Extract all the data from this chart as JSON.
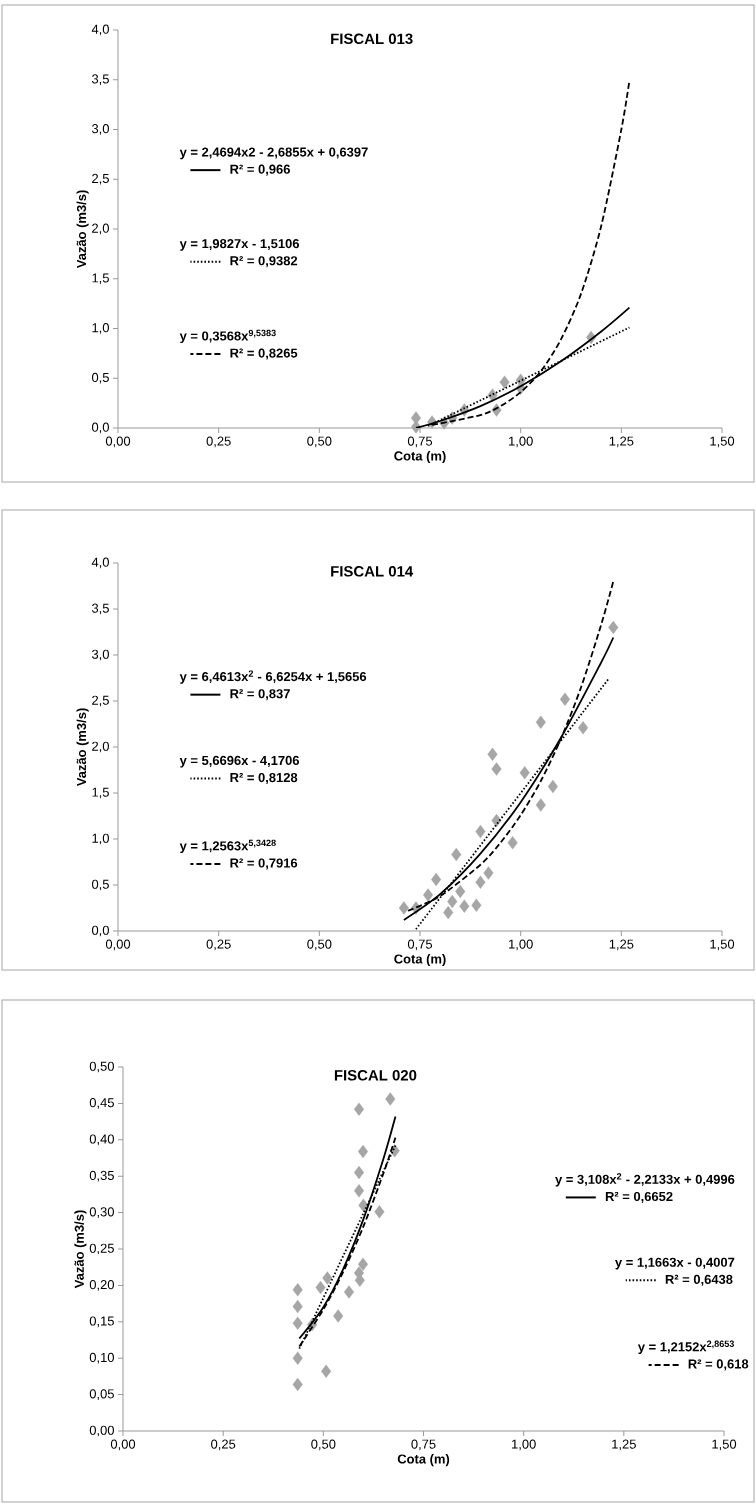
{
  "chart_data": [
    {
      "type": "scatter",
      "title": "FISCAL 013",
      "xlabel": "Cota (m)",
      "ylabel": "Vazão (m3/s)",
      "legend": "left",
      "xlim": [
        0,
        1.5
      ],
      "ylim": [
        0,
        4
      ],
      "xticks": [
        {
          "value": 0,
          "label": "0,00"
        },
        {
          "value": 0.25,
          "label": "0,25"
        },
        {
          "value": 0.5,
          "label": "0,50"
        },
        {
          "value": 0.75,
          "label": "0,75"
        },
        {
          "value": 1,
          "label": "1,00"
        },
        {
          "value": 1.25,
          "label": "1,25"
        },
        {
          "value": 1.5,
          "label": "1,50"
        }
      ],
      "yticks": [
        {
          "value": 0,
          "label": "0,0"
        },
        {
          "value": 0.5,
          "label": "0,5"
        },
        {
          "value": 1,
          "label": "1,0"
        },
        {
          "value": 1.5,
          "label": "1,5"
        },
        {
          "value": 2,
          "label": "2,0"
        },
        {
          "value": 2.5,
          "label": "2,5"
        },
        {
          "value": 3,
          "label": "3,0"
        },
        {
          "value": 3.5,
          "label": "3,5"
        },
        {
          "value": 4,
          "label": "4,0"
        }
      ],
      "annotations": [
        "y = 2,4694x2 - 2,6855x + 0,6397",
        "y = 1,9827x - 1,5106",
        "y = 0,3568x$^{9,5383}$"
      ],
      "series": [
        {
          "marker": "diamond",
          "color": "#a6a6a6",
          "x": [
            0.74,
            0.74,
            0.78,
            0.81,
            0.83,
            0.86,
            0.93,
            0.94,
            0.96,
            1.0,
            1.0,
            1.175
          ],
          "values": [
            0.1,
            0.01,
            0.06,
            0.05,
            0.1,
            0.18,
            0.33,
            0.18,
            0.46,
            0.48,
            0.4,
            0.91
          ]
        },
        {
          "type": "line",
          "line_style": "solid",
          "color": "#000000",
          "name": "R² = 0,966",
          "x": [
            0.74,
            0.8,
            0.9,
            1.0,
            1.1,
            1.2,
            1.27
          ],
          "values": [
            0.0,
            0.07,
            0.22,
            0.42,
            0.67,
            0.97,
            1.21
          ]
        },
        {
          "type": "line",
          "line_style": "dotted",
          "color": "#000000",
          "name": "R² = 0,9382",
          "x": [
            0.77,
            1.27
          ],
          "values": [
            0.02,
            1.01
          ]
        },
        {
          "type": "line",
          "line_style": "dashed",
          "color": "#000000",
          "name": "R² = 0,8265",
          "x": [
            0.78,
            0.9,
            0.95,
            1.0,
            1.05,
            1.1,
            1.15,
            1.2,
            1.25,
            1.27
          ],
          "values": [
            0.03,
            0.13,
            0.22,
            0.36,
            0.57,
            0.89,
            1.35,
            2.03,
            3.0,
            3.49
          ]
        }
      ]
    },
    {
      "type": "scatter",
      "title": "FISCAL 014",
      "xlabel": "Cota (m)",
      "ylabel": "Vazão (m3/s)",
      "legend": "left",
      "xlim": [
        0,
        1.5
      ],
      "ylim": [
        0,
        4
      ],
      "xticks": [
        {
          "value": 0,
          "label": "0,00"
        },
        {
          "value": 0.25,
          "label": "0,25"
        },
        {
          "value": 0.5,
          "label": "0,50"
        },
        {
          "value": 0.75,
          "label": "0,75"
        },
        {
          "value": 1,
          "label": "1,00"
        },
        {
          "value": 1.25,
          "label": "1,25"
        },
        {
          "value": 1.5,
          "label": "1,50"
        }
      ],
      "yticks": [
        {
          "value": 0,
          "label": "0,0"
        },
        {
          "value": 0.5,
          "label": "0,5"
        },
        {
          "value": 1,
          "label": "1,0"
        },
        {
          "value": 1.5,
          "label": "1,5"
        },
        {
          "value": 2,
          "label": "2,0"
        },
        {
          "value": 2.5,
          "label": "2,5"
        },
        {
          "value": 3,
          "label": "3,0"
        },
        {
          "value": 3.5,
          "label": "3,5"
        },
        {
          "value": 4,
          "label": "4,0"
        }
      ],
      "annotations": [
        "y = 6,4613x$^{2}$ - 6,6254x + 1,5656",
        "y = 5,6696x - 4,1706",
        "y = 1,2563x$^{5,3428}$"
      ],
      "series": [
        {
          "marker": "diamond",
          "color": "#a6a6a6",
          "x": [
            1.23,
            1.11,
            1.05,
            1.155,
            0.93,
            0.94,
            1.01,
            1.08,
            1.05,
            0.94,
            0.9,
            0.98,
            0.84,
            0.92,
            0.9,
            0.79,
            0.85,
            0.83,
            0.89,
            0.86,
            0.82,
            0.71,
            0.74,
            0.77
          ],
          "values": [
            3.3,
            2.52,
            2.27,
            2.21,
            1.92,
            1.76,
            1.72,
            1.57,
            1.37,
            1.2,
            1.08,
            0.96,
            0.83,
            0.63,
            0.53,
            0.56,
            0.43,
            0.32,
            0.28,
            0.27,
            0.2,
            0.25,
            0.25,
            0.39
          ]
        },
        {
          "type": "line",
          "line_style": "solid",
          "color": "#000000",
          "name": "R² = 0,837",
          "x": [
            0.71,
            0.8,
            0.9,
            1.0,
            1.1,
            1.2,
            1.23
          ],
          "values": [
            0.12,
            0.4,
            0.84,
            1.4,
            2.1,
            2.92,
            3.19
          ]
        },
        {
          "type": "line",
          "line_style": "dotted",
          "color": "#000000",
          "name": "R² = 0,8128",
          "x": [
            0.74,
            1.22
          ],
          "values": [
            0.02,
            2.75
          ]
        },
        {
          "type": "line",
          "line_style": "dashed",
          "color": "#000000",
          "name": "R² = 0,7916",
          "x": [
            0.72,
            0.8,
            0.9,
            0.95,
            1.0,
            1.05,
            1.1,
            1.15,
            1.2,
            1.23
          ],
          "values": [
            0.22,
            0.38,
            0.72,
            0.96,
            1.26,
            1.63,
            2.09,
            2.65,
            3.33,
            3.8
          ]
        }
      ]
    },
    {
      "type": "scatter",
      "title": "FISCAL 020",
      "xlabel": "Cota (m)",
      "ylabel": "Vazão (m3/s)",
      "legend": "right",
      "xlim": [
        0,
        1.5
      ],
      "ylim": [
        0,
        0.5
      ],
      "xticks": [
        {
          "value": 0,
          "label": "0,00"
        },
        {
          "value": 0.25,
          "label": "0,25"
        },
        {
          "value": 0.5,
          "label": "0,50"
        },
        {
          "value": 0.75,
          "label": "0,75"
        },
        {
          "value": 1,
          "label": "1,00"
        },
        {
          "value": 1.25,
          "label": "1,25"
        },
        {
          "value": 1.5,
          "label": "1,50"
        }
      ],
      "yticks": [
        {
          "value": 0,
          "label": "0,00"
        },
        {
          "value": 0.05,
          "label": "0,05"
        },
        {
          "value": 0.1,
          "label": "0,10"
        },
        {
          "value": 0.15,
          "label": "0,15"
        },
        {
          "value": 0.2,
          "label": "0,20"
        },
        {
          "value": 0.25,
          "label": "0,25"
        },
        {
          "value": 0.3,
          "label": "0,30"
        },
        {
          "value": 0.35,
          "label": "0,35"
        },
        {
          "value": 0.4,
          "label": "0,40"
        },
        {
          "value": 0.45,
          "label": "0,45"
        },
        {
          "value": 0.5,
          "label": "0,50"
        }
      ],
      "annotations": [
        "y = 3,108x$^{2}$ - 2,2133x + 0,4996",
        "y = 1,1663x - 0,4007",
        "y = 1,2152x$^{2,8653}$"
      ],
      "series": [
        {
          "marker": "diamond",
          "color": "#a6a6a6",
          "x": [
            0.667,
            0.589,
            0.678,
            0.599,
            0.589,
            0.589,
            0.64,
            0.6,
            0.599,
            0.589,
            0.591,
            0.564,
            0.51,
            0.493,
            0.436,
            0.436,
            0.436,
            0.472,
            0.537,
            0.436,
            0.507,
            0.436
          ],
          "values": [
            0.456,
            0.442,
            0.385,
            0.384,
            0.355,
            0.33,
            0.301,
            0.31,
            0.229,
            0.217,
            0.207,
            0.191,
            0.21,
            0.197,
            0.194,
            0.171,
            0.148,
            0.146,
            0.158,
            0.1,
            0.082,
            0.064
          ]
        },
        {
          "type": "line",
          "line_style": "solid",
          "color": "#000000",
          "name": "R² = 0,6652",
          "x": [
            0.44,
            0.5,
            0.55,
            0.6,
            0.65,
            0.68
          ],
          "values": [
            0.127,
            0.17,
            0.223,
            0.291,
            0.374,
            0.432
          ]
        },
        {
          "type": "line",
          "line_style": "dotted",
          "color": "#000000",
          "name": "R² = 0,6438",
          "x": [
            0.44,
            0.68
          ],
          "values": [
            0.113,
            0.392
          ]
        },
        {
          "type": "line",
          "line_style": "dashed",
          "color": "#000000",
          "name": "R² = 0,618",
          "x": [
            0.44,
            0.5,
            0.55,
            0.6,
            0.65,
            0.68
          ],
          "values": [
            0.116,
            0.167,
            0.219,
            0.281,
            0.354,
            0.403
          ]
        }
      ]
    }
  ]
}
